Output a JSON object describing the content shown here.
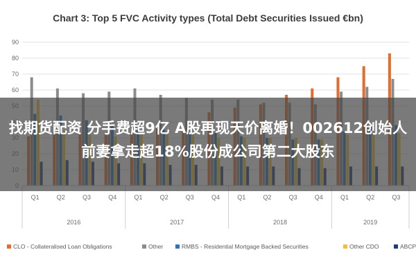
{
  "chart_data": {
    "type": "bar",
    "title": "Chart 3: Top 5 FVC Activity types (Total Debt Securities Issued €bn)",
    "xlabel": "",
    "ylabel": "",
    "ylim": [
      0,
      90
    ],
    "yticks": [
      0,
      10,
      20,
      30,
      40,
      50,
      60,
      70,
      80,
      90
    ],
    "grid": true,
    "legend_position": "bottom",
    "categories": [
      "Q1",
      "Q2",
      "Q3",
      "Q4",
      "Q1",
      "Q2",
      "Q3",
      "Q4",
      "Q1",
      "Q2",
      "Q3",
      "Q4",
      "Q1",
      "Q2",
      "Q3"
    ],
    "year_groups": [
      {
        "label": "2016",
        "count": 4
      },
      {
        "label": "2017",
        "count": 4
      },
      {
        "label": "2018",
        "count": 4
      },
      {
        "label": "2019",
        "count": 3
      }
    ],
    "series": [
      {
        "name": "CLO - Collateralised Loan Obligations",
        "color": "#E46C2C",
        "values": [
          31,
          33,
          33,
          33,
          34,
          36,
          36,
          46,
          49,
          51,
          57,
          61,
          68,
          75,
          83
        ]
      },
      {
        "name": "Other",
        "color": "#8C8C8C",
        "values": [
          68,
          61,
          58,
          59,
          61,
          57,
          55,
          54,
          54,
          52,
          52,
          51,
          59,
          62,
          67
        ]
      },
      {
        "name": "RMBS - Residential Mortgage Backed Securities",
        "color": "#2E75B6",
        "values": [
          45,
          44,
          41,
          38,
          36,
          35,
          33,
          33,
          31,
          30,
          29,
          29,
          34,
          37,
          38
        ]
      },
      {
        "name": "Other CDO",
        "color": "#F2C12E",
        "values": [
          54,
          34,
          32,
          31,
          32,
          32,
          32,
          30,
          30,
          30,
          30,
          29,
          32,
          33,
          33
        ]
      },
      {
        "name": "ABCP",
        "color": "#1F3E78",
        "values": [
          15,
          16,
          15,
          14,
          14,
          13,
          13,
          12,
          12,
          12,
          11,
          11,
          12,
          12,
          12
        ]
      }
    ]
  },
  "overlay": {
    "headline": "找期货配资 分手费超9亿 A股再现天价离婚！002612创始人前妻拿走超18%股份成公司第二大股东"
  }
}
